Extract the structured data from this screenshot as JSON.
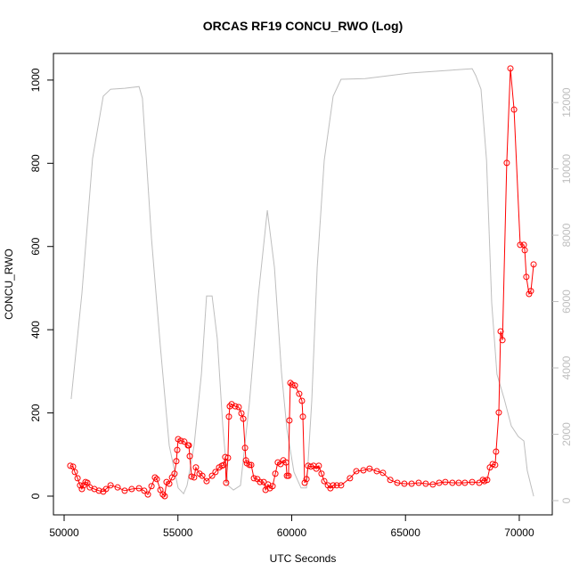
{
  "chart_data": {
    "type": "line",
    "title": "ORCAS RF19 CONCU_RWO (Log)",
    "x_label": "UTC Seconds",
    "y_label": "CONCU_RWO",
    "xlim": [
      49530,
      71450
    ],
    "ylim": [
      -45,
      1064
    ],
    "y2lim": [
      -430,
      13480
    ],
    "xticks": [
      50000,
      55000,
      60000,
      65000,
      70000
    ],
    "yticks": [
      0,
      200,
      400,
      600,
      800,
      1000
    ],
    "y2ticks": [
      0,
      2000,
      4000,
      6000,
      8000,
      10000,
      12000
    ],
    "series": [
      {
        "color": "#bebebe",
        "axis": "y2",
        "marker": false,
        "x": [
          50310,
          50780,
          51250,
          51720,
          52040,
          52660,
          53290,
          53440,
          53840,
          54230,
          54620,
          55010,
          55250,
          55400,
          55710,
          56030,
          56260,
          56500,
          56730,
          56970,
          57200,
          57440,
          57750,
          58140,
          58540,
          58930,
          59240,
          59550,
          59790,
          60100,
          60410,
          60650,
          60880,
          61120,
          61430,
          61820,
          62170,
          63230,
          65190,
          67930,
          68090,
          68320,
          68560,
          68790,
          69020,
          69340,
          69650,
          69960,
          70200,
          70350,
          70510,
          70630
        ],
        "values": [
          3060,
          6230,
          10310,
          12190,
          12400,
          12430,
          12480,
          12130,
          7890,
          4620,
          1660,
          380,
          210,
          460,
          1660,
          3810,
          6170,
          6170,
          4890,
          2250,
          460,
          320,
          460,
          2950,
          6230,
          8750,
          7030,
          3870,
          2150,
          860,
          380,
          380,
          3010,
          7030,
          10260,
          12190,
          12700,
          12720,
          12890,
          13020,
          12810,
          12400,
          10260,
          5960,
          3810,
          3060,
          2250,
          1930,
          1800,
          910,
          460,
          130
        ]
      },
      {
        "color": "#ff0000",
        "marker": true,
        "x": [
          50270,
          50390,
          50470,
          50590,
          50700,
          50780,
          50860,
          50940,
          51020,
          51130,
          51330,
          51530,
          51720,
          51840,
          52040,
          52350,
          52660,
          52970,
          53290,
          53520,
          53680,
          53840,
          53990,
          54070,
          54230,
          54340,
          54420,
          54500,
          54620,
          54740,
          54850,
          54930,
          54970,
          55010,
          55130,
          55280,
          55440,
          55480,
          55520,
          55600,
          55710,
          55790,
          55950,
          56070,
          56260,
          56500,
          56650,
          56810,
          56930,
          57010,
          57080,
          57120,
          57200,
          57240,
          57280,
          57360,
          57520,
          57670,
          57790,
          57870,
          57950,
          57990,
          58030,
          58140,
          58220,
          58340,
          58490,
          58610,
          58770,
          58850,
          58960,
          59040,
          59160,
          59280,
          59390,
          59510,
          59630,
          59750,
          59790,
          59860,
          59900,
          59940,
          60020,
          60140,
          60330,
          60450,
          60490,
          60570,
          60650,
          60720,
          60840,
          60960,
          61080,
          61190,
          61310,
          61430,
          61590,
          61700,
          61820,
          61980,
          62170,
          62560,
          62840,
          63150,
          63420,
          63740,
          64010,
          64330,
          64640,
          64950,
          65270,
          65580,
          65890,
          66200,
          66480,
          66750,
          67060,
          67340,
          67610,
          67930,
          68240,
          68400,
          68470,
          68590,
          68710,
          68830,
          68940,
          68980,
          69100,
          69180,
          69260,
          69450,
          69610,
          69770,
          70040,
          70200,
          70240,
          70310,
          70430,
          70510,
          70630
        ],
        "values": [
          73,
          71,
          58,
          43,
          26,
          17,
          26,
          34,
          32,
          21,
          17,
          13,
          11,
          17,
          26,
          21,
          13,
          17,
          19,
          13,
          4,
          24,
          45,
          41,
          15,
          4,
          0,
          34,
          30,
          45,
          54,
          84,
          111,
          137,
          133,
          131,
          122,
          122,
          96,
          47,
          45,
          69,
          54,
          49,
          36,
          49,
          58,
          69,
          73,
          75,
          94,
          32,
          92,
          191,
          216,
          221,
          216,
          214,
          199,
          186,
          116,
          86,
          79,
          75,
          75,
          43,
          41,
          34,
          34,
          15,
          28,
          19,
          24,
          54,
          81,
          77,
          86,
          81,
          49,
          49,
          182,
          272,
          268,
          266,
          246,
          229,
          191,
          32,
          41,
          73,
          71,
          73,
          66,
          73,
          54,
          36,
          26,
          19,
          26,
          26,
          26,
          43,
          60,
          62,
          66,
          60,
          56,
          39,
          32,
          30,
          30,
          32,
          30,
          28,
          32,
          34,
          32,
          32,
          32,
          34,
          32,
          39,
          36,
          39,
          69,
          77,
          75,
          107,
          201,
          396,
          375,
          801,
          1028,
          929,
          604,
          604,
          591,
          527,
          486,
          493,
          557
        ]
      }
    ]
  }
}
